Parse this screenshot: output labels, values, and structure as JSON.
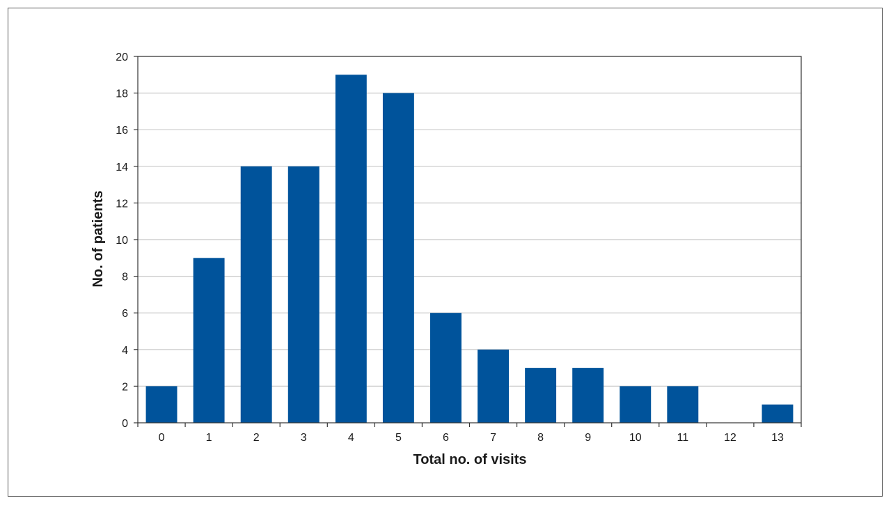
{
  "chart_data": {
    "type": "bar",
    "categories": [
      "0",
      "1",
      "2",
      "3",
      "4",
      "5",
      "6",
      "7",
      "8",
      "9",
      "10",
      "11",
      "12",
      "13"
    ],
    "values": [
      2,
      9,
      14,
      14,
      19,
      18,
      6,
      4,
      3,
      3,
      2,
      2,
      0,
      1
    ],
    "xlabel": "Total no. of visits",
    "ylabel": "No. of patients",
    "ylim": [
      0,
      20
    ],
    "yticks": [
      0,
      2,
      4,
      6,
      8,
      10,
      12,
      14,
      16,
      18,
      20
    ],
    "grid": true,
    "bar_color": "#00539b",
    "gridline_color": "#c8c8c8"
  }
}
